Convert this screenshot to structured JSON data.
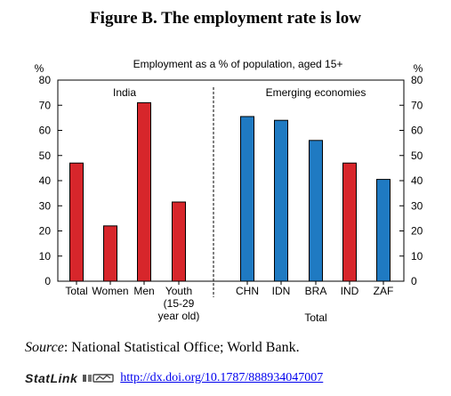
{
  "figure_title": "Figure B. The employment rate is low",
  "chart_data": {
    "type": "bar",
    "title": "Employment as a % of population, aged 15+",
    "ylabel_left": "%",
    "ylabel_right": "%",
    "ylim": [
      0,
      80
    ],
    "yticks": [
      0,
      10,
      20,
      30,
      40,
      50,
      60,
      70,
      80
    ],
    "panels": [
      {
        "label": "India",
        "categories": [
          [
            "Total"
          ],
          [
            "Women"
          ],
          [
            "Men"
          ],
          [
            "Youth",
            "(15-29",
            "year old)"
          ]
        ],
        "values": [
          47,
          22,
          71,
          31.5
        ],
        "color": "#d7262b"
      },
      {
        "label": "Emerging economies",
        "xlabel": "Total",
        "categories": [
          [
            "CHN"
          ],
          [
            "IDN"
          ],
          [
            "BRA"
          ],
          [
            "IND"
          ],
          [
            "ZAF"
          ]
        ],
        "values": [
          65.5,
          64,
          56,
          47,
          40.5
        ],
        "colors": [
          "#1f7ac2",
          "#1f7ac2",
          "#1f7ac2",
          "#d7262b",
          "#1f7ac2"
        ]
      }
    ]
  },
  "source": {
    "prefix": "Source",
    "text": ": National Statistical Office; World Bank."
  },
  "statlink": {
    "label": "StatLink",
    "url": "http://dx.doi.org/10.1787/888934047007"
  }
}
